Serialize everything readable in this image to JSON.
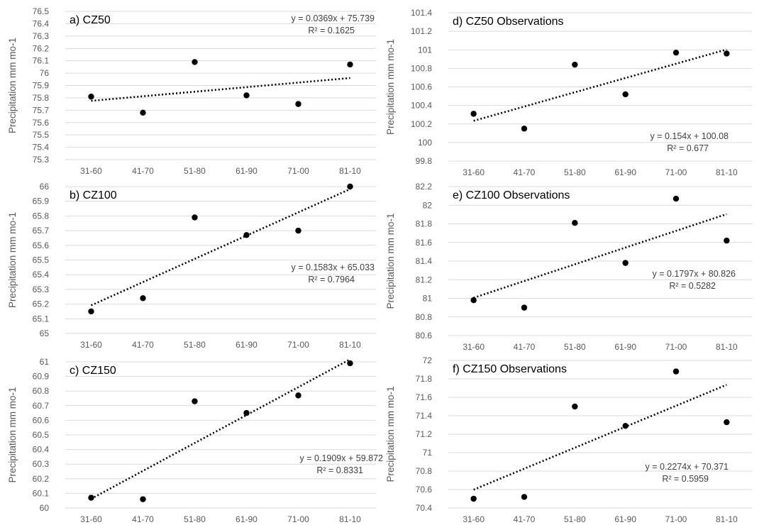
{
  "chart_data": [
    {
      "type": "scatter",
      "panel": "a",
      "title": "a) CZ50",
      "ylabel": "Precipitation  mm mo-1",
      "categories": [
        "31-60",
        "41-70",
        "51-80",
        "61-90",
        "71-00",
        "81-10"
      ],
      "values": [
        75.81,
        75.68,
        76.09,
        75.82,
        75.75,
        76.07
      ],
      "ylim": [
        75.3,
        76.5
      ],
      "yticks": [
        "75.3",
        "75.4",
        "75.5",
        "75.6",
        "75.7",
        "75.8",
        "75.9",
        "76",
        "76.1",
        "76.2",
        "76.3",
        "76.4",
        "76.5"
      ],
      "trendline": {
        "slope": 0.0369,
        "intercept": 75.739
      },
      "equation": "y = 0.0369x + 75.739",
      "r2": "R² = 0.1625",
      "equation_position": "top-right",
      "grid": true
    },
    {
      "type": "scatter",
      "panel": "b",
      "title": "b) CZ100",
      "ylabel": "Precipitation  mm mo-1",
      "categories": [
        "31-60",
        "41-70",
        "51-80",
        "61-90",
        "71-00",
        "81-10"
      ],
      "values": [
        65.15,
        65.24,
        65.79,
        65.67,
        65.7,
        66.0
      ],
      "ylim": [
        65.0,
        66.0
      ],
      "yticks": [
        "65",
        "65.1",
        "65.2",
        "65.3",
        "65.4",
        "65.5",
        "65.6",
        "65.7",
        "65.8",
        "65.9",
        "66"
      ],
      "trendline": {
        "slope": 0.1583,
        "intercept": 65.033
      },
      "equation": "y = 0.1583x + 65.033",
      "r2": "R² = 0.7964",
      "equation_position": "lower-right",
      "grid": true
    },
    {
      "type": "scatter",
      "panel": "c",
      "title": "c) CZ150",
      "ylabel": "Precipitation  mm mo-1",
      "categories": [
        "31-60",
        "41-70",
        "51-80",
        "61-90",
        "71-00",
        "81-10"
      ],
      "values": [
        60.07,
        60.06,
        60.73,
        60.65,
        60.77,
        60.99
      ],
      "ylim": [
        60.0,
        61.0
      ],
      "yticks": [
        "60",
        "60.1",
        "60.2",
        "60.3",
        "60.4",
        "60.5",
        "60.6",
        "60.7",
        "60.8",
        "60.9",
        "61"
      ],
      "trendline": {
        "slope": 0.1909,
        "intercept": 59.872
      },
      "equation": "y = 0.1909x + 59.872",
      "r2": "R² = 0.8331",
      "equation_position": "lower-right",
      "grid": true
    },
    {
      "type": "scatter",
      "panel": "d",
      "title": "d) CZ50 Observations",
      "ylabel": "Precipitation  mm mo-1",
      "categories": [
        "31-60",
        "41-70",
        "51-80",
        "61-90",
        "71-00",
        "81-10"
      ],
      "values": [
        100.31,
        100.15,
        100.84,
        100.52,
        100.97,
        100.96
      ],
      "ylim": [
        99.8,
        101.4
      ],
      "yticks": [
        "99.8",
        "100",
        "100.2",
        "100.4",
        "100.6",
        "100.8",
        "101",
        "101.2",
        "101.4"
      ],
      "trendline": {
        "slope": 0.154,
        "intercept": 100.08
      },
      "equation": "y = 0.154x + 100.08",
      "r2": "R² = 0.677",
      "equation_position": "lower-right",
      "grid": true
    },
    {
      "type": "scatter",
      "panel": "e",
      "title": "e) CZ100 Observations",
      "ylabel": "Precipitation  mm mo-1",
      "categories": [
        "31-60",
        "41-70",
        "51-80",
        "61-90",
        "71-00",
        "81-10"
      ],
      "values": [
        80.98,
        80.9,
        81.81,
        81.38,
        82.07,
        81.62
      ],
      "ylim": [
        80.6,
        82.2
      ],
      "yticks": [
        "80.6",
        "80.8",
        "81",
        "81.2",
        "81.4",
        "81.6",
        "81.8",
        "82",
        "82.2"
      ],
      "trendline": {
        "slope": 0.1797,
        "intercept": 80.826
      },
      "equation": "y = 0.1797x + 80.826",
      "r2": "R² = 0.5282",
      "equation_position": "center-right",
      "grid": true
    },
    {
      "type": "scatter",
      "panel": "f",
      "title": "f) CZ150 Observations",
      "ylabel": "Precipitation  mm mo-1",
      "categories": [
        "31-60",
        "41-70",
        "51-80",
        "61-90",
        "71-00",
        "81-10"
      ],
      "values": [
        70.5,
        70.52,
        71.5,
        71.29,
        71.88,
        71.33
      ],
      "ylim": [
        70.4,
        72.0
      ],
      "yticks": [
        "70.4",
        "70.6",
        "70.8",
        "71",
        "71.2",
        "71.4",
        "71.6",
        "71.8",
        "72"
      ],
      "trendline": {
        "slope": 0.2274,
        "intercept": 70.371
      },
      "equation": "y = 0.2274x + 70.371",
      "r2": "R² = 0.5959",
      "equation_position": "lower-right",
      "grid": true
    }
  ]
}
